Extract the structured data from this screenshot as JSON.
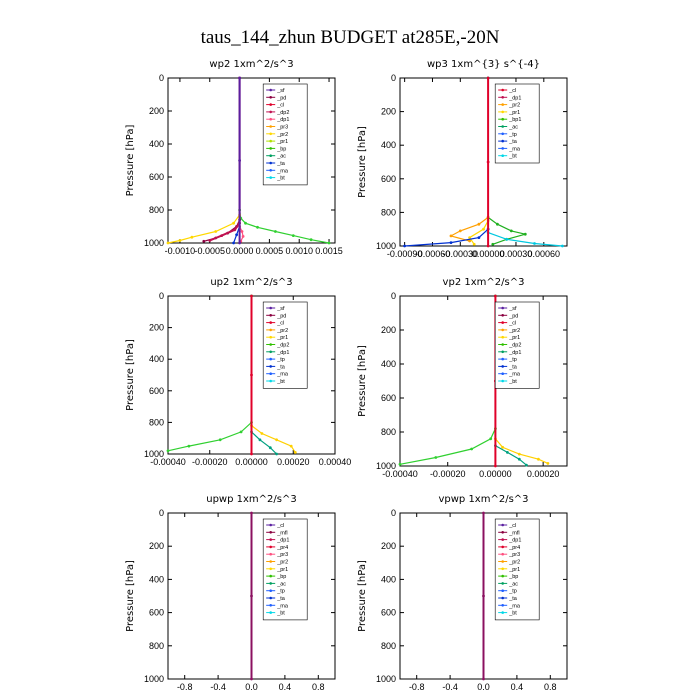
{
  "figure": {
    "title": "taus_144_zhun  BUDGET at285E,-20N"
  },
  "chart_data": [
    {
      "type": "line",
      "id": "wp2",
      "title": "wp2   1xm^2/s^3",
      "ylabel": "Pressure [hPa]",
      "xlabel": "",
      "ylim": [
        1000,
        0
      ],
      "xlim": [
        -0.0012,
        0.0016
      ],
      "xticks_text": [
        "-0.0010",
        "-0.0005",
        "0.0000",
        "0.0005",
        "0.0010",
        "0.0015"
      ],
      "xticks": [
        -0.001,
        -0.0005,
        0.0,
        0.0005,
        0.001,
        0.0015
      ],
      "yticks": [
        0,
        200,
        400,
        600,
        800,
        1000
      ],
      "legend": [
        "_sf",
        "_pd",
        "_cl",
        "_dp2",
        "_dp1",
        "_pr3",
        "_pr2",
        "_pr1",
        "_bp",
        "_ac",
        "_ta",
        "_ma",
        "_bt"
      ],
      "legend_colors": [
        "#5a1fa0",
        "#8b0040",
        "#e0002a",
        "#c01050",
        "#ff5080",
        "#ffa000",
        "#ffd800",
        "#b0e000",
        "#30c000",
        "#00a060",
        "#0030d0",
        "#2060ff",
        "#00d8e8"
      ],
      "series": [
        {
          "name": "_pr1",
          "color": "#30d030",
          "x": [
            0.0,
            0.0,
            2e-05,
            0.0001,
            0.0003,
            0.0006,
            0.0009,
            0.0012,
            0.0015
          ],
          "y": [
            0,
            800,
            850,
            880,
            905,
            930,
            955,
            980,
            1000
          ]
        },
        {
          "name": "_pr2",
          "color": "#ffd800",
          "x": [
            0.0,
            0.0,
            -0.0001,
            -0.0004,
            -0.0008,
            -0.001,
            -0.0012
          ],
          "y": [
            0,
            830,
            880,
            930,
            965,
            985,
            1000
          ]
        },
        {
          "name": "_pd",
          "color": "#8b0040",
          "x": [
            0.0,
            0.0,
            -5e-05,
            -0.0002,
            -0.0004,
            -0.0006
          ],
          "y": [
            0,
            860,
            900,
            940,
            970,
            990
          ]
        },
        {
          "name": "_cl",
          "color": "#c01050",
          "x": [
            0.0,
            0.0,
            -8e-05,
            -0.0003,
            -0.0005
          ],
          "y": [
            0,
            880,
            920,
            955,
            985
          ]
        },
        {
          "name": "_ta",
          "color": "#0030d0",
          "x": [
            0.0,
            0.0,
            -5e-05,
            -0.0001
          ],
          "y": [
            0,
            900,
            950,
            1000
          ]
        },
        {
          "name": "_dp1",
          "color": "#ff5080",
          "x": [
            0.0,
            0.0,
            4e-05,
            6e-05,
            2e-05
          ],
          "y": [
            0,
            900,
            930,
            960,
            990
          ]
        },
        {
          "name": "_sf",
          "color": "#5a1fa0",
          "x": [
            0.0,
            0.0,
            0.0
          ],
          "y": [
            0,
            500,
            1000
          ]
        }
      ]
    },
    {
      "type": "line",
      "id": "wp3",
      "title": "wp3   1xm^{3} s^{-4}",
      "ylabel": "Pressure [hPa]",
      "xlabel": "",
      "ylim": [
        1000,
        0
      ],
      "xlim": [
        -0.00095,
        0.00085
      ],
      "xticks_text": [
        "-0.00090",
        "-0.00060",
        "-0.00030",
        "0.00000",
        "0.00030",
        "0.00060"
      ],
      "xticks": [
        -0.0009,
        -0.0006,
        -0.0003,
        0.0,
        0.0003,
        0.0006
      ],
      "yticks": [
        0,
        200,
        400,
        600,
        800,
        1000
      ],
      "legend": [
        "_cl",
        "_dp1",
        "_pr2",
        "_pr1",
        "_bp1",
        "_ac",
        "_tp",
        "_ta",
        "_ma",
        "_bt"
      ],
      "legend_colors": [
        "#e0002a",
        "#c01050",
        "#ffa000",
        "#ffd800",
        "#30c000",
        "#00a060",
        "#2060ff",
        "#0030d0",
        "#2060ff",
        "#00d8e8"
      ],
      "series": [
        {
          "name": "_ac",
          "color": "#20b020",
          "x": [
            0.0,
            0.0,
            0.0001,
            0.00025,
            0.0004,
            0.0002,
            5e-05
          ],
          "y": [
            0,
            830,
            870,
            910,
            930,
            960,
            990
          ]
        },
        {
          "name": "_pr2",
          "color": "#ffa000",
          "x": [
            0.0,
            0.0,
            -0.0001,
            -0.0003,
            -0.0004,
            -0.0002
          ],
          "y": [
            0,
            830,
            870,
            910,
            940,
            970
          ]
        },
        {
          "name": "_pr1",
          "color": "#ffd800",
          "x": [
            0.0,
            0.0,
            -5e-05,
            -0.0002,
            -0.00015
          ],
          "y": [
            0,
            850,
            900,
            950,
            990
          ]
        },
        {
          "name": "_ta",
          "color": "#0030d0",
          "x": [
            0.0,
            0.0,
            -0.0001,
            -0.0004,
            -0.0009
          ],
          "y": [
            0,
            900,
            950,
            980,
            1000
          ]
        },
        {
          "name": "_bt",
          "color": "#00c8e0",
          "x": [
            0.0,
            0.0,
            0.0002,
            0.0005,
            0.0008
          ],
          "y": [
            0,
            920,
            960,
            985,
            1000
          ]
        },
        {
          "name": "_cl",
          "color": "#e0002a",
          "x": [
            0.0,
            0.0,
            0.0
          ],
          "y": [
            0,
            500,
            1000
          ]
        }
      ]
    },
    {
      "type": "line",
      "id": "up2",
      "title": "up2   1xm^2/s^3",
      "ylabel": "Pressure [hPa]",
      "xlabel": "",
      "ylim": [
        1000,
        0
      ],
      "xlim": [
        -0.0004,
        0.0004
      ],
      "xticks_text": [
        "-0.00040",
        "-0.00020",
        "0.00000",
        "0.00020",
        "0.00040"
      ],
      "xticks": [
        -0.0004,
        -0.0002,
        0.0,
        0.0002,
        0.0004
      ],
      "yticks": [
        0,
        200,
        400,
        600,
        800,
        1000
      ],
      "legend": [
        "_sf",
        "_pd",
        "_cl",
        "_pr2",
        "_pr1",
        "_dp2",
        "_dp1",
        "_tp",
        "_ta",
        "_ma",
        "_bt"
      ],
      "legend_colors": [
        "#5a1fa0",
        "#8b0040",
        "#e0002a",
        "#ffa000",
        "#ffd800",
        "#30c000",
        "#00a060",
        "#2060ff",
        "#0030d0",
        "#2060ff",
        "#00d8e8"
      ],
      "series": [
        {
          "name": "_pr1",
          "color": "#30d030",
          "x": [
            0.0,
            0.0,
            -5e-05,
            -0.00015,
            -0.0003,
            -0.0004
          ],
          "y": [
            0,
            800,
            860,
            910,
            950,
            980
          ]
        },
        {
          "name": "_pr2",
          "color": "#ffd000",
          "x": [
            0.0,
            0.0,
            5e-05,
            0.00012,
            0.00019,
            0.00021
          ],
          "y": [
            0,
            820,
            870,
            910,
            950,
            990
          ]
        },
        {
          "name": "_dp1",
          "color": "#00a080",
          "x": [
            0.0,
            0.0,
            4e-05,
            9e-05,
            0.00012
          ],
          "y": [
            0,
            860,
            910,
            960,
            1000
          ]
        },
        {
          "name": "_cl",
          "color": "#e0002a",
          "x": [
            0.0,
            0.0,
            0.0
          ],
          "y": [
            0,
            500,
            1000
          ]
        }
      ]
    },
    {
      "type": "line",
      "id": "vp2",
      "title": "vp2   1xm^2/s^3",
      "ylabel": "Pressure [hPa]",
      "xlabel": "",
      "ylim": [
        1000,
        0
      ],
      "xlim": [
        -0.0004,
        0.0003
      ],
      "xticks_text": [
        "-0.00040",
        "-0.00020",
        "0.00000",
        "0.00020"
      ],
      "xticks": [
        -0.0004,
        -0.0002,
        0.0,
        0.0002
      ],
      "yticks": [
        0,
        200,
        400,
        600,
        800,
        1000
      ],
      "legend": [
        "_sf",
        "_pd",
        "_cl",
        "_pr2",
        "_pr1",
        "_dp2",
        "_dp1",
        "_tp",
        "_ta",
        "_ma",
        "_bt"
      ],
      "legend_colors": [
        "#5a1fa0",
        "#8b0040",
        "#e0002a",
        "#ffa000",
        "#ffd800",
        "#30c000",
        "#00a060",
        "#2060ff",
        "#0030d0",
        "#2060ff",
        "#00d8e8"
      ],
      "series": [
        {
          "name": "_pr1",
          "color": "#30d030",
          "x": [
            0.0,
            0.0,
            -2e-05,
            -0.0001,
            -0.00025,
            -0.0004
          ],
          "y": [
            0,
            780,
            840,
            900,
            950,
            990
          ]
        },
        {
          "name": "_pr2",
          "color": "#ffd000",
          "x": [
            0.0,
            0.0,
            3e-05,
            0.0001,
            0.00018,
            0.00022
          ],
          "y": [
            0,
            840,
            890,
            930,
            960,
            985
          ]
        },
        {
          "name": "_dp1",
          "color": "#00a080",
          "x": [
            0.0,
            0.0,
            5e-05,
            0.0001,
            0.00013
          ],
          "y": [
            0,
            880,
            920,
            960,
            995
          ]
        },
        {
          "name": "_cl",
          "color": "#e0002a",
          "x": [
            0.0,
            0.0,
            0.0
          ],
          "y": [
            0,
            500,
            1000
          ]
        }
      ]
    },
    {
      "type": "line",
      "id": "upwp",
      "title": "upwp   1xm^2/s^3",
      "ylabel": "Pressure [hPa]",
      "xlabel": "",
      "ylim": [
        1000,
        0
      ],
      "xlim": [
        -1,
        1
      ],
      "xticks_text": [
        "-0.8",
        "-0.4",
        "0.0",
        "0.4",
        "0.8"
      ],
      "xticks": [
        -0.8,
        -0.4,
        0.0,
        0.4,
        0.8
      ],
      "yticks": [
        0,
        200,
        400,
        600,
        800,
        1000
      ],
      "legend": [
        "_cl",
        "_mfl",
        "_dp1",
        "_pr4",
        "_pr3",
        "_pr2",
        "_pr1",
        "_bp",
        "_ac",
        "_tp",
        "_ta",
        "_ma",
        "_bt"
      ],
      "legend_colors": [
        "#5a1fa0",
        "#8b0040",
        "#c01050",
        "#e0002a",
        "#ff5080",
        "#ffa000",
        "#ffd800",
        "#30c000",
        "#00a060",
        "#2060ff",
        "#0030d0",
        "#2060ff",
        "#00d8e8"
      ],
      "series": [
        {
          "name": "_cl",
          "color": "#8b1060",
          "x": [
            0.0,
            0.0,
            0.0
          ],
          "y": [
            0,
            500,
            1000
          ]
        }
      ]
    },
    {
      "type": "line",
      "id": "vpwp",
      "title": "vpwp   1xm^2/s^3",
      "ylabel": "Pressure [hPa]",
      "xlabel": "",
      "ylim": [
        1000,
        0
      ],
      "xlim": [
        -1,
        1
      ],
      "xticks_text": [
        "-0.8",
        "-0.4",
        "0.0",
        "0.4",
        "0.8"
      ],
      "xticks": [
        -0.8,
        -0.4,
        0.0,
        0.4,
        0.8
      ],
      "yticks": [
        0,
        200,
        400,
        600,
        800,
        1000
      ],
      "legend": [
        "_cl",
        "_mfl",
        "_dp1",
        "_pr4",
        "_pr3",
        "_pr2",
        "_pr1",
        "_bp",
        "_ac",
        "_tp",
        "_ta",
        "_ma",
        "_bt"
      ],
      "legend_colors": [
        "#5a1fa0",
        "#8b0040",
        "#c01050",
        "#e0002a",
        "#ff5080",
        "#ffa000",
        "#ffd800",
        "#30c000",
        "#00a060",
        "#2060ff",
        "#0030d0",
        "#2060ff",
        "#00d8e8"
      ],
      "series": [
        {
          "name": "_cl",
          "color": "#8b1060",
          "x": [
            0.0,
            0.0,
            0.0
          ],
          "y": [
            0,
            500,
            1000
          ]
        }
      ]
    }
  ]
}
